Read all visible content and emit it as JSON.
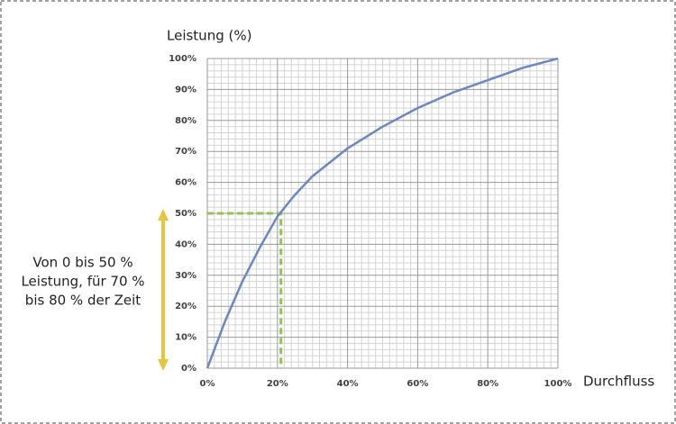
{
  "chart_data": {
    "type": "line",
    "y_label": "Leistung (%)",
    "x_label": "Durchfluss",
    "annotation": [
      "Von 0 bis 50 %",
      "Leistung, für 70 %",
      "bis 80 % der Zeit"
    ],
    "x": [
      0,
      5,
      10,
      15,
      20,
      25,
      30,
      40,
      50,
      60,
      70,
      80,
      90,
      100
    ],
    "series": [
      {
        "color": "#6d88c0",
        "values": [
          0,
          15,
          28,
          39,
          49,
          56,
          62,
          71,
          78,
          84,
          89,
          93,
          97,
          100
        ]
      }
    ],
    "guide": {
      "x": 21,
      "y": 50,
      "color": "#92c353"
    },
    "xlim": [
      0,
      100
    ],
    "ylim": [
      0,
      100
    ],
    "xticks": [
      {
        "value": 0,
        "label": "0%"
      },
      {
        "value": 20,
        "label": "20%"
      },
      {
        "value": 40,
        "label": "40%"
      },
      {
        "value": 60,
        "label": "60%"
      },
      {
        "value": 80,
        "label": "80%"
      },
      {
        "value": 100,
        "label": "100%"
      }
    ],
    "yticks": [
      {
        "value": 0,
        "label": "0%"
      },
      {
        "value": 10,
        "label": "10%"
      },
      {
        "value": 20,
        "label": "20%"
      },
      {
        "value": 30,
        "label": "30%"
      },
      {
        "value": 40,
        "label": "40%"
      },
      {
        "value": 50,
        "label": "50%"
      },
      {
        "value": 60,
        "label": "60%"
      },
      {
        "value": 70,
        "label": "70%"
      },
      {
        "value": 80,
        "label": "80%"
      },
      {
        "value": 90,
        "label": "90%"
      },
      {
        "value": 100,
        "label": "100%"
      }
    ],
    "x_minor_ticks": [
      2,
      4,
      6,
      8,
      10,
      12,
      14,
      16,
      18,
      22,
      24,
      26,
      28,
      30,
      32,
      34,
      36,
      38,
      42,
      44,
      46,
      48,
      50,
      52,
      54,
      56,
      58,
      62,
      64,
      66,
      68,
      70,
      72,
      74,
      76,
      78,
      82,
      84,
      86,
      88,
      90,
      92,
      94,
      96,
      98
    ],
    "y_minor_ticks": [
      2,
      4,
      6,
      8,
      12,
      14,
      16,
      18,
      22,
      24,
      26,
      28,
      32,
      34,
      36,
      38,
      42,
      44,
      46,
      48,
      52,
      54,
      56,
      58,
      62,
      64,
      66,
      68,
      72,
      74,
      76,
      78,
      82,
      84,
      86,
      88,
      92,
      94,
      96,
      98
    ],
    "grid": true
  }
}
